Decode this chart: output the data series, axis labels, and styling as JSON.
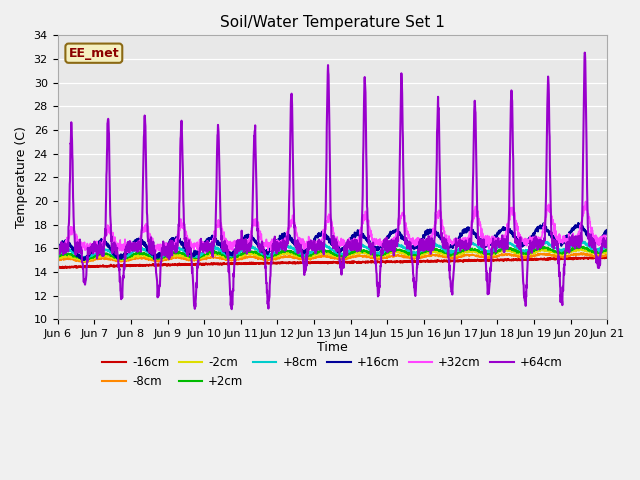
{
  "title": "Soil/Water Temperature Set 1",
  "xlabel": "Time",
  "ylabel": "Temperature (C)",
  "ylim": [
    10,
    34
  ],
  "xlim": [
    0,
    15
  ],
  "background_color": "#f0f0f0",
  "plot_bg_color": "#e8e8e8",
  "x_tick_labels": [
    "Jun 6",
    "Jun 7",
    "Jun 8",
    "Jun 9",
    "Jun 10",
    "Jun 11",
    "Jun 12",
    "Jun 13",
    "Jun 14",
    "Jun 15",
    "Jun 16",
    "Jun 17",
    "Jun 18",
    "Jun 19",
    "Jun 20",
    "Jun 21"
  ],
  "x_tick_positions": [
    0,
    1,
    2,
    3,
    4,
    5,
    6,
    7,
    8,
    9,
    10,
    11,
    12,
    13,
    14,
    15
  ],
  "series_colors": {
    "m16cm": "#cc0000",
    "m8cm": "#ff8800",
    "m2cm": "#dddd00",
    "p2cm": "#00bb00",
    "p8cm": "#00cccc",
    "p16cm": "#000099",
    "p32cm": "#ff44ff",
    "p64cm": "#9900cc"
  },
  "watermark_text": "EE_met",
  "legend_labels": [
    "-16cm",
    "-8cm",
    "-2cm",
    "+2cm",
    "+8cm",
    "+16cm",
    "+32cm",
    "+64cm"
  ],
  "legend_colors": [
    "#cc0000",
    "#ff8800",
    "#dddd00",
    "#00bb00",
    "#00cccc",
    "#000099",
    "#ff44ff",
    "#9900cc"
  ]
}
